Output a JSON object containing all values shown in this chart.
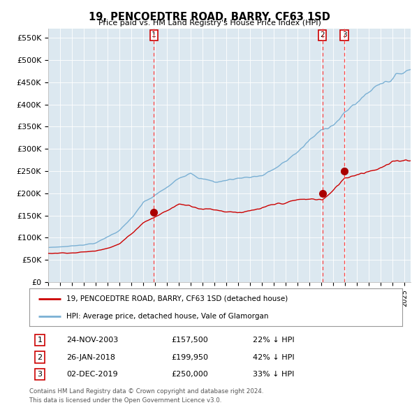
{
  "title": "19, PENCOEDTRE ROAD, BARRY, CF63 1SD",
  "subtitle": "Price paid vs. HM Land Registry's House Price Index (HPI)",
  "ylabel_ticks": [
    "£0",
    "£50K",
    "£100K",
    "£150K",
    "£200K",
    "£250K",
    "£300K",
    "£350K",
    "£400K",
    "£450K",
    "£500K",
    "£550K"
  ],
  "ytick_values": [
    0,
    50000,
    100000,
    150000,
    200000,
    250000,
    300000,
    350000,
    400000,
    450000,
    500000,
    550000
  ],
  "ylim": [
    0,
    570000
  ],
  "xlim_start": 1995.0,
  "xlim_end": 2025.5,
  "legend_line1": "19, PENCOEDTRE ROAD, BARRY, CF63 1SD (detached house)",
  "legend_line2": "HPI: Average price, detached house, Vale of Glamorgan",
  "transactions": [
    {
      "num": 1,
      "date": "24-NOV-2003",
      "price": 157500,
      "pct": "22%",
      "year": 2003.9
    },
    {
      "num": 2,
      "date": "26-JAN-2018",
      "price": 199950,
      "pct": "42%",
      "year": 2018.07
    },
    {
      "num": 3,
      "date": "02-DEC-2019",
      "price": 250000,
      "pct": "33%",
      "year": 2019.92
    }
  ],
  "footnote1": "Contains HM Land Registry data © Crown copyright and database right 2024.",
  "footnote2": "This data is licensed under the Open Government Licence v3.0.",
  "hpi_color": "#7ab0d4",
  "price_color": "#cc0000",
  "marker_color": "#aa0000",
  "vline_color": "#ff4444",
  "background_color": "#ffffff",
  "plot_bg_color": "#dce8f0"
}
